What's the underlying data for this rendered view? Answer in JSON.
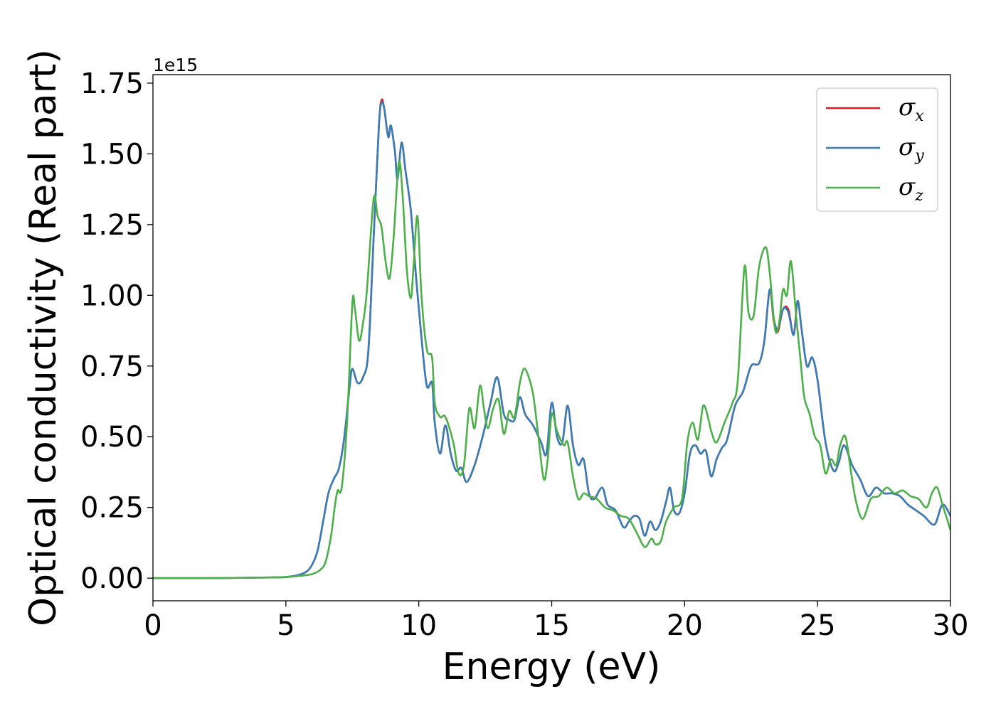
{
  "chart_data": {
    "type": "line",
    "xlabel": "Energy (eV)",
    "ylabel": "Optical conductivity (Real part)",
    "y_offset_text": "1e15",
    "xlim": [
      0,
      30
    ],
    "ylim": [
      -0.08,
      1.78
    ],
    "x_ticks": [
      0,
      5,
      10,
      15,
      20,
      25,
      30
    ],
    "x_tick_labels": [
      "0",
      "5",
      "10",
      "15",
      "20",
      "25",
      "30"
    ],
    "y_ticks": [
      0.0,
      0.25,
      0.5,
      0.75,
      1.0,
      1.25,
      1.5,
      1.75
    ],
    "y_tick_labels": [
      "0.00",
      "0.25",
      "0.50",
      "0.75",
      "1.00",
      "1.25",
      "1.50",
      "1.75"
    ],
    "grid": false,
    "legend_position": "top-right",
    "series": [
      {
        "name": "σ",
        "subscript": "x",
        "color": "#e41a1c",
        "x": [
          0,
          2,
          4,
          5,
          5.5,
          5.8,
          6.0,
          6.2,
          6.4,
          6.6,
          6.8,
          7.0,
          7.2,
          7.4,
          7.5,
          7.7,
          7.9,
          8.1,
          8.3,
          8.5,
          8.6,
          8.7,
          8.85,
          8.95,
          9.1,
          9.2,
          9.35,
          9.5,
          9.7,
          9.9,
          10.1,
          10.3,
          10.5,
          10.6,
          10.8,
          11.0,
          11.2,
          11.4,
          11.6,
          11.8,
          12.1,
          12.4,
          12.7,
          12.95,
          13.2,
          13.4,
          13.6,
          13.8,
          14.0,
          14.3,
          14.6,
          14.8,
          15.0,
          15.2,
          15.4,
          15.6,
          15.8,
          16.0,
          16.2,
          16.4,
          16.6,
          16.9,
          17.1,
          17.4,
          17.7,
          17.9,
          18.1,
          18.3,
          18.5,
          18.7,
          18.9,
          19.1,
          19.3,
          19.45,
          19.6,
          19.8,
          20.0,
          20.2,
          20.4,
          20.6,
          20.8,
          21.0,
          21.2,
          21.4,
          21.6,
          21.9,
          22.2,
          22.5,
          22.8,
          23.0,
          23.2,
          23.35,
          23.5,
          23.7,
          23.9,
          24.1,
          24.25,
          24.4,
          24.6,
          24.8,
          25.0,
          25.3,
          25.6,
          25.8,
          26.0,
          26.3,
          26.6,
          26.9,
          27.2,
          27.5,
          27.8,
          28.1,
          28.4,
          28.7,
          29.0,
          29.4,
          29.7,
          30.0
        ],
        "y": [
          0.0,
          0.0,
          0.002,
          0.004,
          0.012,
          0.025,
          0.05,
          0.1,
          0.2,
          0.3,
          0.35,
          0.39,
          0.5,
          0.68,
          0.74,
          0.69,
          0.71,
          0.8,
          1.2,
          1.6,
          1.69,
          1.66,
          1.56,
          1.6,
          1.51,
          1.41,
          1.54,
          1.44,
          1.3,
          1.06,
          0.85,
          0.68,
          0.69,
          0.55,
          0.44,
          0.54,
          0.44,
          0.38,
          0.39,
          0.34,
          0.4,
          0.5,
          0.62,
          0.71,
          0.58,
          0.56,
          0.56,
          0.64,
          0.58,
          0.54,
          0.48,
          0.44,
          0.62,
          0.5,
          0.48,
          0.61,
          0.47,
          0.4,
          0.42,
          0.3,
          0.28,
          0.32,
          0.26,
          0.24,
          0.18,
          0.2,
          0.22,
          0.21,
          0.15,
          0.2,
          0.17,
          0.2,
          0.27,
          0.32,
          0.24,
          0.23,
          0.3,
          0.44,
          0.47,
          0.44,
          0.45,
          0.36,
          0.42,
          0.46,
          0.49,
          0.61,
          0.66,
          0.75,
          0.76,
          0.84,
          1.02,
          0.91,
          0.87,
          0.95,
          0.95,
          0.86,
          0.98,
          0.88,
          0.75,
          0.78,
          0.7,
          0.48,
          0.38,
          0.41,
          0.47,
          0.4,
          0.35,
          0.29,
          0.32,
          0.3,
          0.3,
          0.29,
          0.26,
          0.24,
          0.22,
          0.19,
          0.26,
          0.22
        ]
      },
      {
        "name": "σ",
        "subscript": "y",
        "color": "#377eb8",
        "x": [
          0,
          2,
          4,
          5,
          5.5,
          5.8,
          6.0,
          6.2,
          6.4,
          6.6,
          6.8,
          7.0,
          7.2,
          7.4,
          7.5,
          7.7,
          7.9,
          8.1,
          8.3,
          8.5,
          8.6,
          8.7,
          8.85,
          8.95,
          9.1,
          9.2,
          9.35,
          9.5,
          9.7,
          9.9,
          10.1,
          10.3,
          10.5,
          10.6,
          10.8,
          11.0,
          11.2,
          11.4,
          11.6,
          11.8,
          12.1,
          12.4,
          12.7,
          12.95,
          13.2,
          13.4,
          13.6,
          13.8,
          14.0,
          14.3,
          14.6,
          14.8,
          15.0,
          15.2,
          15.4,
          15.6,
          15.8,
          16.0,
          16.2,
          16.4,
          16.6,
          16.9,
          17.1,
          17.4,
          17.7,
          17.9,
          18.1,
          18.3,
          18.5,
          18.7,
          18.9,
          19.1,
          19.3,
          19.45,
          19.6,
          19.8,
          20.0,
          20.2,
          20.4,
          20.6,
          20.8,
          21.0,
          21.2,
          21.4,
          21.6,
          21.9,
          22.2,
          22.5,
          22.8,
          23.0,
          23.2,
          23.35,
          23.5,
          23.7,
          23.9,
          24.1,
          24.25,
          24.4,
          24.6,
          24.8,
          25.0,
          25.3,
          25.6,
          25.8,
          26.0,
          26.3,
          26.6,
          26.9,
          27.2,
          27.5,
          27.8,
          28.1,
          28.4,
          28.7,
          29.0,
          29.4,
          29.7,
          30.0
        ],
        "y": [
          0.0,
          0.0,
          0.002,
          0.004,
          0.012,
          0.025,
          0.05,
          0.1,
          0.2,
          0.3,
          0.35,
          0.39,
          0.5,
          0.68,
          0.74,
          0.69,
          0.71,
          0.8,
          1.2,
          1.6,
          1.68,
          1.66,
          1.56,
          1.6,
          1.51,
          1.41,
          1.54,
          1.44,
          1.3,
          1.06,
          0.85,
          0.68,
          0.69,
          0.55,
          0.44,
          0.54,
          0.44,
          0.38,
          0.39,
          0.34,
          0.4,
          0.5,
          0.62,
          0.71,
          0.58,
          0.56,
          0.56,
          0.64,
          0.58,
          0.54,
          0.48,
          0.44,
          0.62,
          0.5,
          0.48,
          0.61,
          0.47,
          0.4,
          0.42,
          0.3,
          0.28,
          0.32,
          0.26,
          0.24,
          0.18,
          0.2,
          0.22,
          0.21,
          0.15,
          0.2,
          0.17,
          0.2,
          0.27,
          0.32,
          0.24,
          0.23,
          0.3,
          0.44,
          0.47,
          0.44,
          0.45,
          0.36,
          0.42,
          0.46,
          0.49,
          0.61,
          0.66,
          0.75,
          0.76,
          0.84,
          1.02,
          0.92,
          0.88,
          0.95,
          0.94,
          0.86,
          0.98,
          0.88,
          0.75,
          0.78,
          0.7,
          0.48,
          0.38,
          0.41,
          0.47,
          0.4,
          0.35,
          0.29,
          0.32,
          0.3,
          0.3,
          0.29,
          0.26,
          0.24,
          0.22,
          0.19,
          0.26,
          0.22
        ]
      },
      {
        "name": "σ",
        "subscript": "z",
        "color": "#4daf4a",
        "x": [
          0,
          2,
          4,
          5,
          5.5,
          6.0,
          6.3,
          6.5,
          6.7,
          6.85,
          6.95,
          7.1,
          7.3,
          7.5,
          7.6,
          7.75,
          7.9,
          8.05,
          8.3,
          8.45,
          8.6,
          8.75,
          8.9,
          9.05,
          9.25,
          9.4,
          9.55,
          9.7,
          9.8,
          9.95,
          10.1,
          10.3,
          10.5,
          10.6,
          10.8,
          11.0,
          11.3,
          11.5,
          11.7,
          11.9,
          12.1,
          12.3,
          12.45,
          12.6,
          12.8,
          13.0,
          13.2,
          13.4,
          13.6,
          13.8,
          13.95,
          14.1,
          14.3,
          14.5,
          14.7,
          14.85,
          15.0,
          15.2,
          15.45,
          15.6,
          15.8,
          16.0,
          16.2,
          16.4,
          16.7,
          17.0,
          17.3,
          17.6,
          17.9,
          18.2,
          18.5,
          18.75,
          18.9,
          19.1,
          19.3,
          19.6,
          19.9,
          20.1,
          20.3,
          20.5,
          20.7,
          20.9,
          21.0,
          21.2,
          21.5,
          21.8,
          22.0,
          22.25,
          22.4,
          22.6,
          22.8,
          23.05,
          23.2,
          23.4,
          23.55,
          23.7,
          23.85,
          24.0,
          24.2,
          24.35,
          24.5,
          24.7,
          24.9,
          25.1,
          25.3,
          25.5,
          25.7,
          25.85,
          26.05,
          26.25,
          26.45,
          26.7,
          27.0,
          27.3,
          27.6,
          27.9,
          28.2,
          28.5,
          28.8,
          29.1,
          29.3,
          29.5,
          29.7,
          30.0
        ],
        "y": [
          0.0,
          0.0,
          0.002,
          0.004,
          0.008,
          0.015,
          0.03,
          0.06,
          0.15,
          0.26,
          0.31,
          0.32,
          0.55,
          0.97,
          0.95,
          0.84,
          0.9,
          1.02,
          1.34,
          1.28,
          1.24,
          1.12,
          1.06,
          1.2,
          1.47,
          1.34,
          1.09,
          0.99,
          1.1,
          1.28,
          1.0,
          0.81,
          0.78,
          0.62,
          0.57,
          0.57,
          0.48,
          0.37,
          0.4,
          0.6,
          0.53,
          0.68,
          0.6,
          0.53,
          0.6,
          0.63,
          0.51,
          0.59,
          0.57,
          0.69,
          0.74,
          0.72,
          0.65,
          0.5,
          0.35,
          0.42,
          0.58,
          0.52,
          0.47,
          0.48,
          0.36,
          0.28,
          0.3,
          0.29,
          0.28,
          0.25,
          0.24,
          0.22,
          0.21,
          0.16,
          0.11,
          0.14,
          0.12,
          0.13,
          0.2,
          0.25,
          0.28,
          0.48,
          0.55,
          0.49,
          0.61,
          0.56,
          0.52,
          0.48,
          0.55,
          0.62,
          0.7,
          1.1,
          0.94,
          0.93,
          1.1,
          1.17,
          1.08,
          0.88,
          0.9,
          1.02,
          1.0,
          1.12,
          0.92,
          0.78,
          0.64,
          0.58,
          0.5,
          0.47,
          0.37,
          0.42,
          0.4,
          0.47,
          0.5,
          0.38,
          0.27,
          0.21,
          0.28,
          0.29,
          0.32,
          0.3,
          0.31,
          0.29,
          0.28,
          0.25,
          0.3,
          0.32,
          0.26,
          0.17
        ]
      }
    ]
  }
}
